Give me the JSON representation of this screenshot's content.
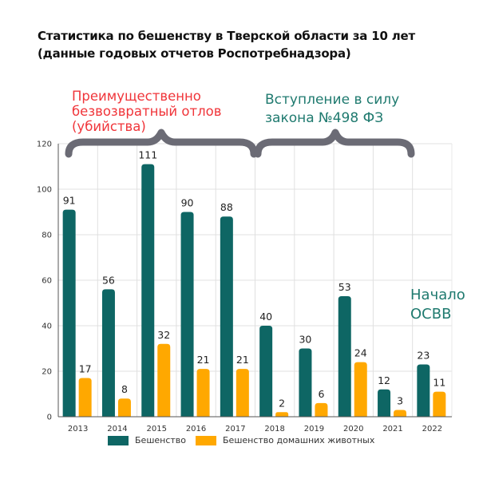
{
  "title_line1": "Статистика по бешенству в Тверской области за 10 лет",
  "title_line2": "(данные годовых отчетов Роспотребнадзора)",
  "annotations": {
    "left_brace_label_1": "Преимущественно",
    "left_brace_label_2": "безвозвратный отлов",
    "left_brace_label_3": "(убийства)",
    "right_brace_label_1": "Вступление в силу",
    "right_brace_label_2": "закона №498 ФЗ",
    "osvv_label_1": "Начало",
    "osvv_label_2": "ОСВВ"
  },
  "colors": {
    "rabies": "#0e6664",
    "pets": "#ffa800",
    "brace": "#6b6b75",
    "red_text": "#f0353a",
    "teal_text": "#1f7a6f"
  },
  "chart_data": {
    "type": "bar",
    "title": "Статистика по бешенству в Тверской области за 10 лет (данные годовых отчетов Роспотребнадзора)",
    "xlabel": "",
    "ylabel": "",
    "categories": [
      "2013",
      "2014",
      "2015",
      "2016",
      "2017",
      "2018",
      "2019",
      "2020",
      "2021",
      "2022"
    ],
    "series": [
      {
        "name": "Бешенство",
        "values": [
          91,
          56,
          111,
          90,
          88,
          40,
          30,
          53,
          12,
          23
        ]
      },
      {
        "name": "Бешенство домашних животных",
        "values": [
          17,
          8,
          32,
          21,
          21,
          2,
          6,
          24,
          3,
          11
        ]
      }
    ],
    "ylim": [
      0,
      120
    ],
    "yticks": [
      0,
      20,
      40,
      60,
      80,
      100,
      120
    ],
    "grid": true,
    "legend_position": "bottom"
  }
}
